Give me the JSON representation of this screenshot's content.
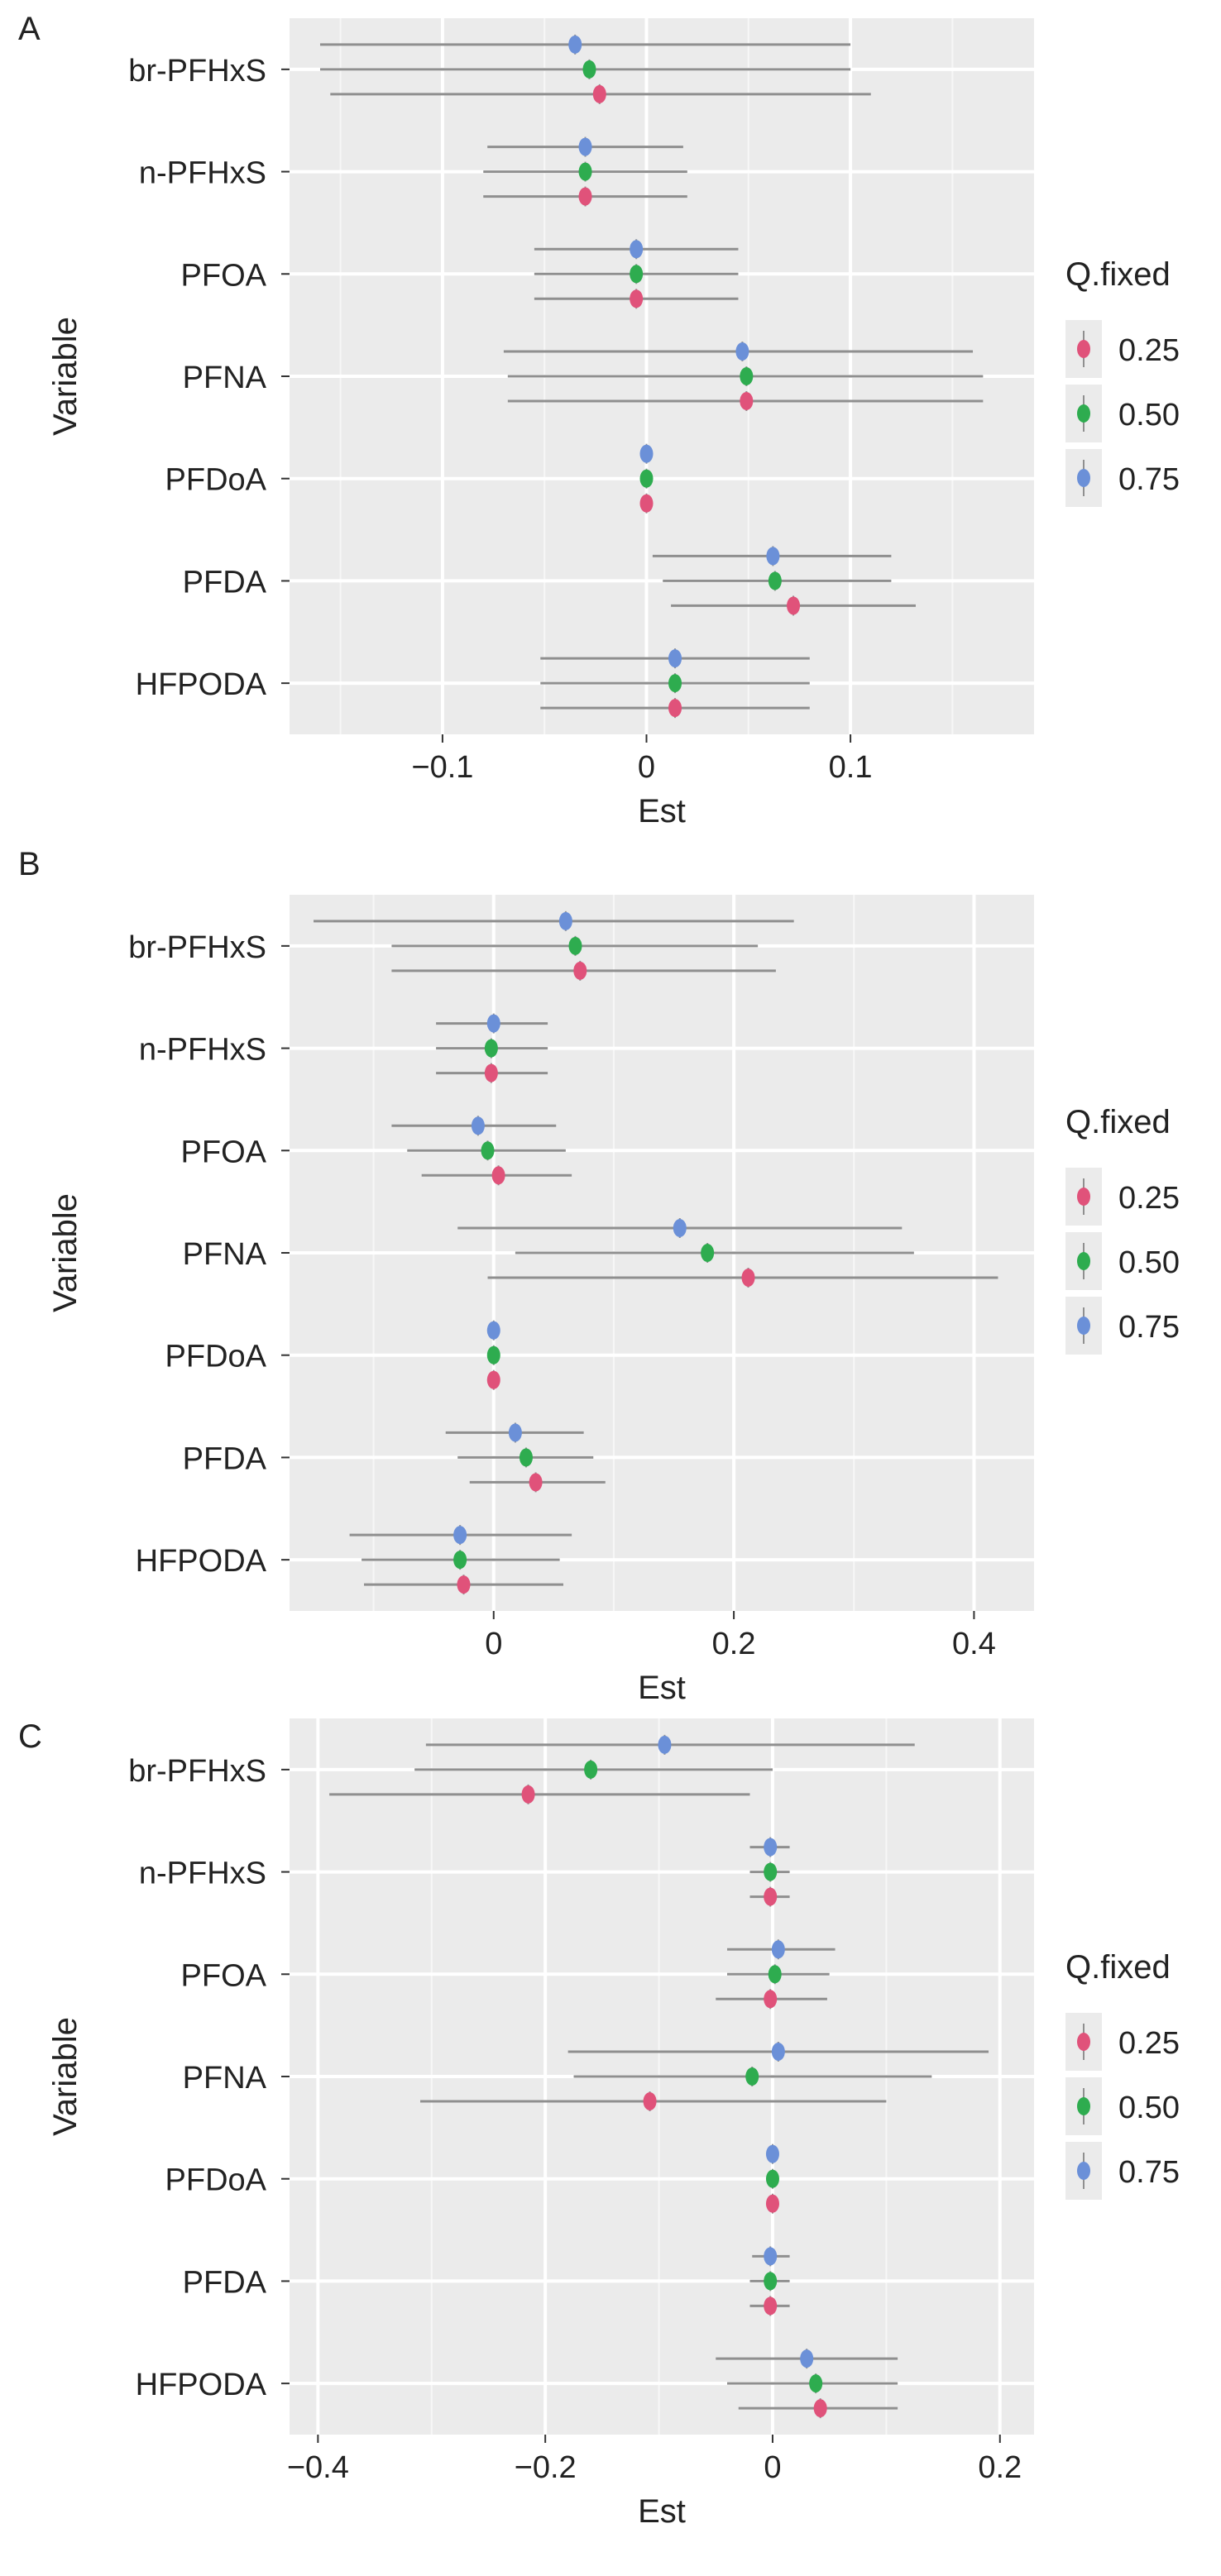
{
  "chart_data": [
    {
      "type": "forest",
      "panel_label": "A",
      "xlabel": "Est",
      "ylabel": "Variable",
      "xlim": [
        -0.175,
        0.19
      ],
      "x_ticks": [
        -0.1,
        0,
        0.1
      ],
      "x_tick_labels": [
        "−0.1",
        "0",
        "0.1"
      ],
      "grid": true,
      "legend_position": "right",
      "legend_title": "Q.fixed",
      "categories": [
        "br-PFHxS",
        "n-PFHxS",
        "PFOA",
        "PFNA",
        "PFDoA",
        "PFDA",
        "HFPODA"
      ],
      "series": [
        {
          "name": "0.25",
          "color": "#e0527a",
          "est": [
            -0.023,
            -0.03,
            -0.005,
            0.049,
            0.0,
            0.072,
            0.014
          ],
          "lower": [
            -0.155,
            -0.08,
            -0.055,
            -0.068,
            -0.001,
            0.012,
            -0.052
          ],
          "upper": [
            0.11,
            0.02,
            0.045,
            0.165,
            0.001,
            0.132,
            0.08
          ]
        },
        {
          "name": "0.50",
          "color": "#2eac4f",
          "est": [
            -0.028,
            -0.03,
            -0.005,
            0.049,
            0.0,
            0.063,
            0.014
          ],
          "lower": [
            -0.16,
            -0.08,
            -0.055,
            -0.068,
            -0.001,
            0.008,
            -0.052
          ],
          "upper": [
            0.1,
            0.02,
            0.045,
            0.165,
            0.001,
            0.12,
            0.08
          ]
        },
        {
          "name": "0.75",
          "color": "#6b90d8",
          "est": [
            -0.035,
            -0.03,
            -0.005,
            0.047,
            0.0,
            0.062,
            0.014
          ],
          "lower": [
            -0.16,
            -0.078,
            -0.055,
            -0.07,
            -0.001,
            0.003,
            -0.052
          ],
          "upper": [
            0.1,
            0.018,
            0.045,
            0.16,
            0.001,
            0.12,
            0.08
          ]
        }
      ]
    },
    {
      "type": "forest",
      "panel_label": "B",
      "xlabel": "Est",
      "ylabel": "Variable",
      "xlim": [
        -0.17,
        0.45
      ],
      "x_ticks": [
        0,
        0.2,
        0.4
      ],
      "x_tick_labels": [
        "0",
        "0.2",
        "0.4"
      ],
      "grid": true,
      "legend_position": "right",
      "legend_title": "Q.fixed",
      "categories": [
        "br-PFHxS",
        "n-PFHxS",
        "PFOA",
        "PFNA",
        "PFDoA",
        "PFDA",
        "HFPODA"
      ],
      "series": [
        {
          "name": "0.25",
          "color": "#e0527a",
          "est": [
            0.072,
            -0.002,
            0.004,
            0.212,
            0.0,
            0.035,
            -0.025
          ],
          "lower": [
            -0.085,
            -0.048,
            -0.06,
            -0.005,
            -0.002,
            -0.02,
            -0.108
          ],
          "upper": [
            0.235,
            0.045,
            0.065,
            0.42,
            0.002,
            0.093,
            0.058
          ]
        },
        {
          "name": "0.50",
          "color": "#2eac4f",
          "est": [
            0.068,
            -0.002,
            -0.005,
            0.178,
            0.0,
            0.027,
            -0.028
          ],
          "lower": [
            -0.085,
            -0.048,
            -0.072,
            0.018,
            -0.002,
            -0.03,
            -0.11
          ],
          "upper": [
            0.22,
            0.045,
            0.06,
            0.35,
            0.002,
            0.083,
            0.055
          ]
        },
        {
          "name": "0.75",
          "color": "#6b90d8",
          "est": [
            0.06,
            0.0,
            -0.013,
            0.155,
            0.0,
            0.018,
            -0.028
          ],
          "lower": [
            -0.15,
            -0.048,
            -0.085,
            -0.03,
            -0.002,
            -0.04,
            -0.12
          ],
          "upper": [
            0.25,
            0.045,
            0.052,
            0.34,
            0.002,
            0.075,
            0.065
          ]
        }
      ]
    },
    {
      "type": "forest",
      "panel_label": "C",
      "xlabel": "Est",
      "ylabel": "Variable",
      "xlim": [
        -0.425,
        0.23
      ],
      "x_ticks": [
        -0.4,
        -0.2,
        0,
        0.2
      ],
      "x_tick_labels": [
        "−0.4",
        "−0.2",
        "0",
        "0.2"
      ],
      "grid": true,
      "legend_position": "right",
      "legend_title": "Q.fixed",
      "categories": [
        "br-PFHxS",
        "n-PFHxS",
        "PFOA",
        "PFNA",
        "PFDoA",
        "PFDA",
        "HFPODA"
      ],
      "series": [
        {
          "name": "0.25",
          "color": "#e0527a",
          "est": [
            -0.215,
            -0.002,
            -0.002,
            -0.108,
            0.0,
            -0.002,
            0.042
          ],
          "lower": [
            -0.39,
            -0.02,
            -0.05,
            -0.31,
            -0.005,
            -0.02,
            -0.03
          ],
          "upper": [
            -0.02,
            0.015,
            0.048,
            0.1,
            0.005,
            0.015,
            0.11
          ]
        },
        {
          "name": "0.50",
          "color": "#2eac4f",
          "est": [
            -0.16,
            -0.002,
            0.002,
            -0.018,
            0.0,
            -0.002,
            0.038
          ],
          "lower": [
            -0.315,
            -0.02,
            -0.04,
            -0.175,
            -0.005,
            -0.02,
            -0.04
          ],
          "upper": [
            0.0,
            0.015,
            0.05,
            0.14,
            0.005,
            0.015,
            0.11
          ]
        },
        {
          "name": "0.75",
          "color": "#6b90d8",
          "est": [
            -0.095,
            -0.002,
            0.005,
            0.005,
            0.0,
            -0.002,
            0.03
          ],
          "lower": [
            -0.305,
            -0.02,
            -0.04,
            -0.18,
            -0.005,
            -0.018,
            -0.05
          ],
          "upper": [
            0.125,
            0.015,
            0.055,
            0.19,
            0.005,
            0.015,
            0.11
          ]
        }
      ]
    }
  ]
}
